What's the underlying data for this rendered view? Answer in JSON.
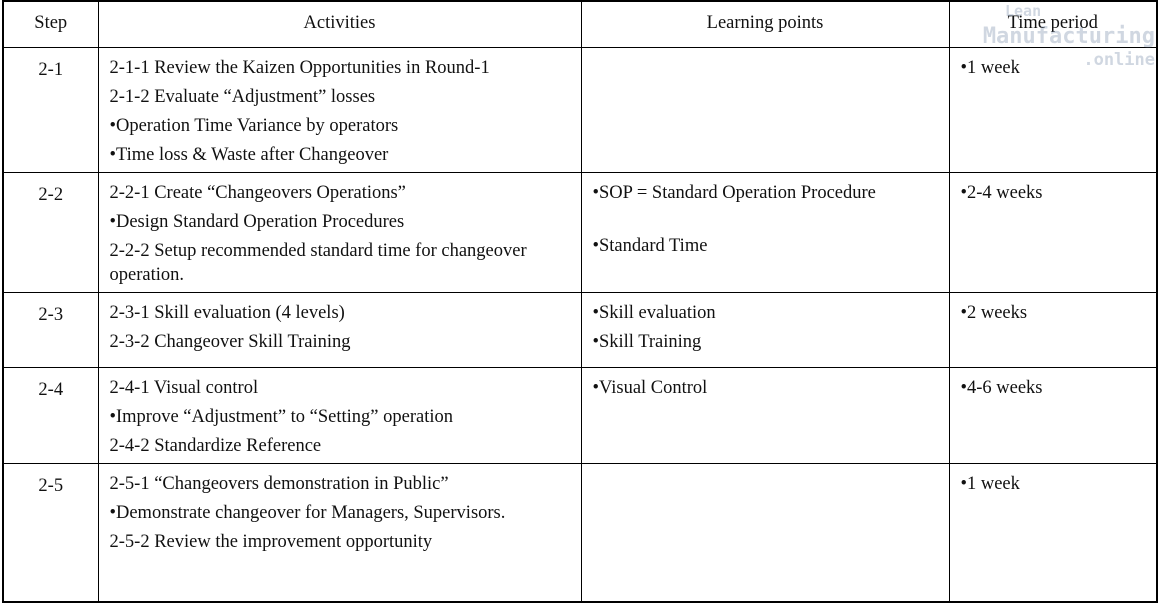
{
  "header": {
    "step": "Step",
    "activities": "Activities",
    "learning": "Learning points",
    "time": "Time period"
  },
  "watermark": {
    "line1": "Lean",
    "line2": "Manufacturing",
    "line3": ".online"
  },
  "table": {
    "rows": [
      {
        "step": "2-1",
        "activities": [
          "2-1-1 Review the Kaizen Opportunities in Round-1",
          "2-1-2 Evaluate “Adjustment” losses",
          "•Operation Time Variance by operators",
          "•Time loss & Waste after Changeover"
        ],
        "learning": [],
        "time": [
          "•1 week"
        ]
      },
      {
        "step": "2-2",
        "activities": [
          "2-2-1 Create “Changeovers Operations”",
          "•Design Standard Operation Procedures",
          "2-2-2 Setup recommended standard time for changeover operation."
        ],
        "learning": [
          "•SOP = Standard Operation Procedure",
          "•Standard Time"
        ],
        "time": [
          "•2-4 weeks"
        ]
      },
      {
        "step": "2-3",
        "activities": [
          "2-3-1 Skill evaluation (4 levels)",
          "2-3-2 Changeover Skill Training"
        ],
        "learning": [
          "•Skill evaluation",
          "•Skill Training"
        ],
        "time": [
          "•2 weeks"
        ]
      },
      {
        "step": "2-4",
        "activities": [
          "2-4-1 Visual control",
          "•Improve “Adjustment” to “Setting” operation",
          "2-4-2 Standardize Reference"
        ],
        "learning": [
          "•Visual Control"
        ],
        "time": [
          "•4-6 weeks"
        ]
      },
      {
        "step": "2-5",
        "activities": [
          "2-5-1 “Changeovers demonstration in Public”",
          "•Demonstrate changeover for Managers, Supervisors.",
          "2-5-2 Review the improvement opportunity"
        ],
        "learning": [],
        "time": [
          "•1 week"
        ]
      }
    ]
  }
}
